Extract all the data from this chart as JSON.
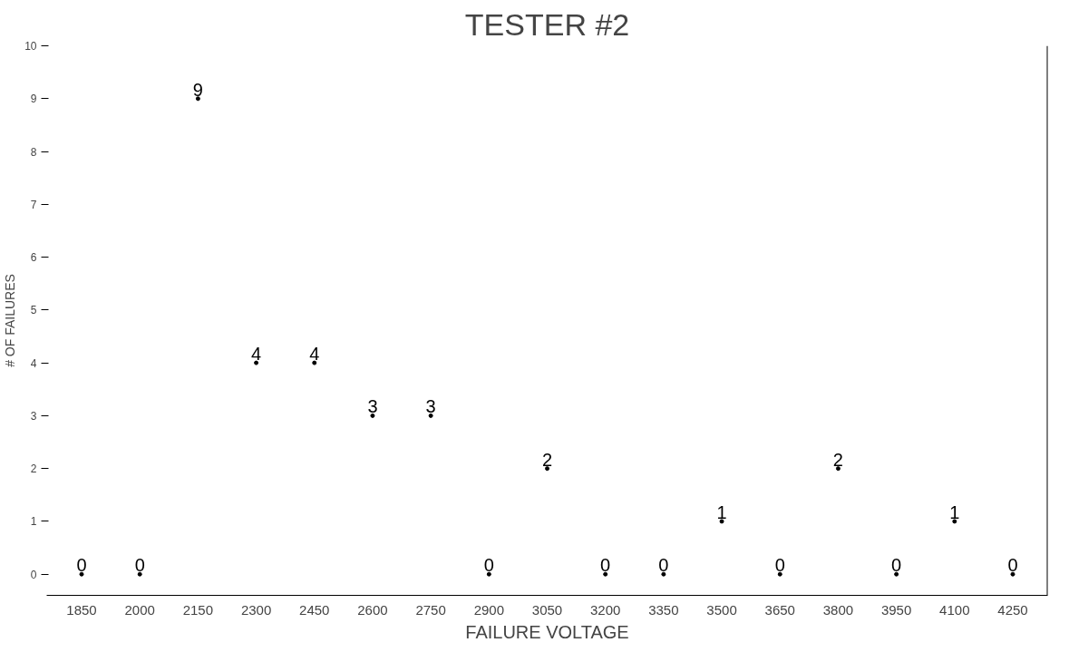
{
  "chart_data": {
    "type": "scatter",
    "title": "TESTER #2",
    "xlabel": "FAILURE VOLTAGE",
    "ylabel": "# OF FAILURES",
    "x": [
      1850,
      2000,
      2150,
      2300,
      2450,
      2600,
      2750,
      2900,
      3050,
      3200,
      3350,
      3500,
      3650,
      3800,
      3950,
      4100,
      4250
    ],
    "values": [
      0,
      0,
      9,
      4,
      4,
      3,
      3,
      0,
      2,
      0,
      0,
      1,
      0,
      2,
      0,
      1,
      0
    ],
    "xlim": [
      1760,
      4340
    ],
    "xticks": [
      1850,
      2000,
      2150,
      2300,
      2450,
      2600,
      2750,
      2900,
      3050,
      3200,
      3350,
      3500,
      3650,
      3800,
      3950,
      4100,
      4250
    ],
    "ylim": [
      -0.4,
      10
    ],
    "yticks": [
      0,
      1,
      2,
      3,
      4,
      5,
      6,
      7,
      8,
      9,
      10
    ],
    "marker": "circle",
    "data_labels": true,
    "grid": false,
    "color": "#000000"
  }
}
